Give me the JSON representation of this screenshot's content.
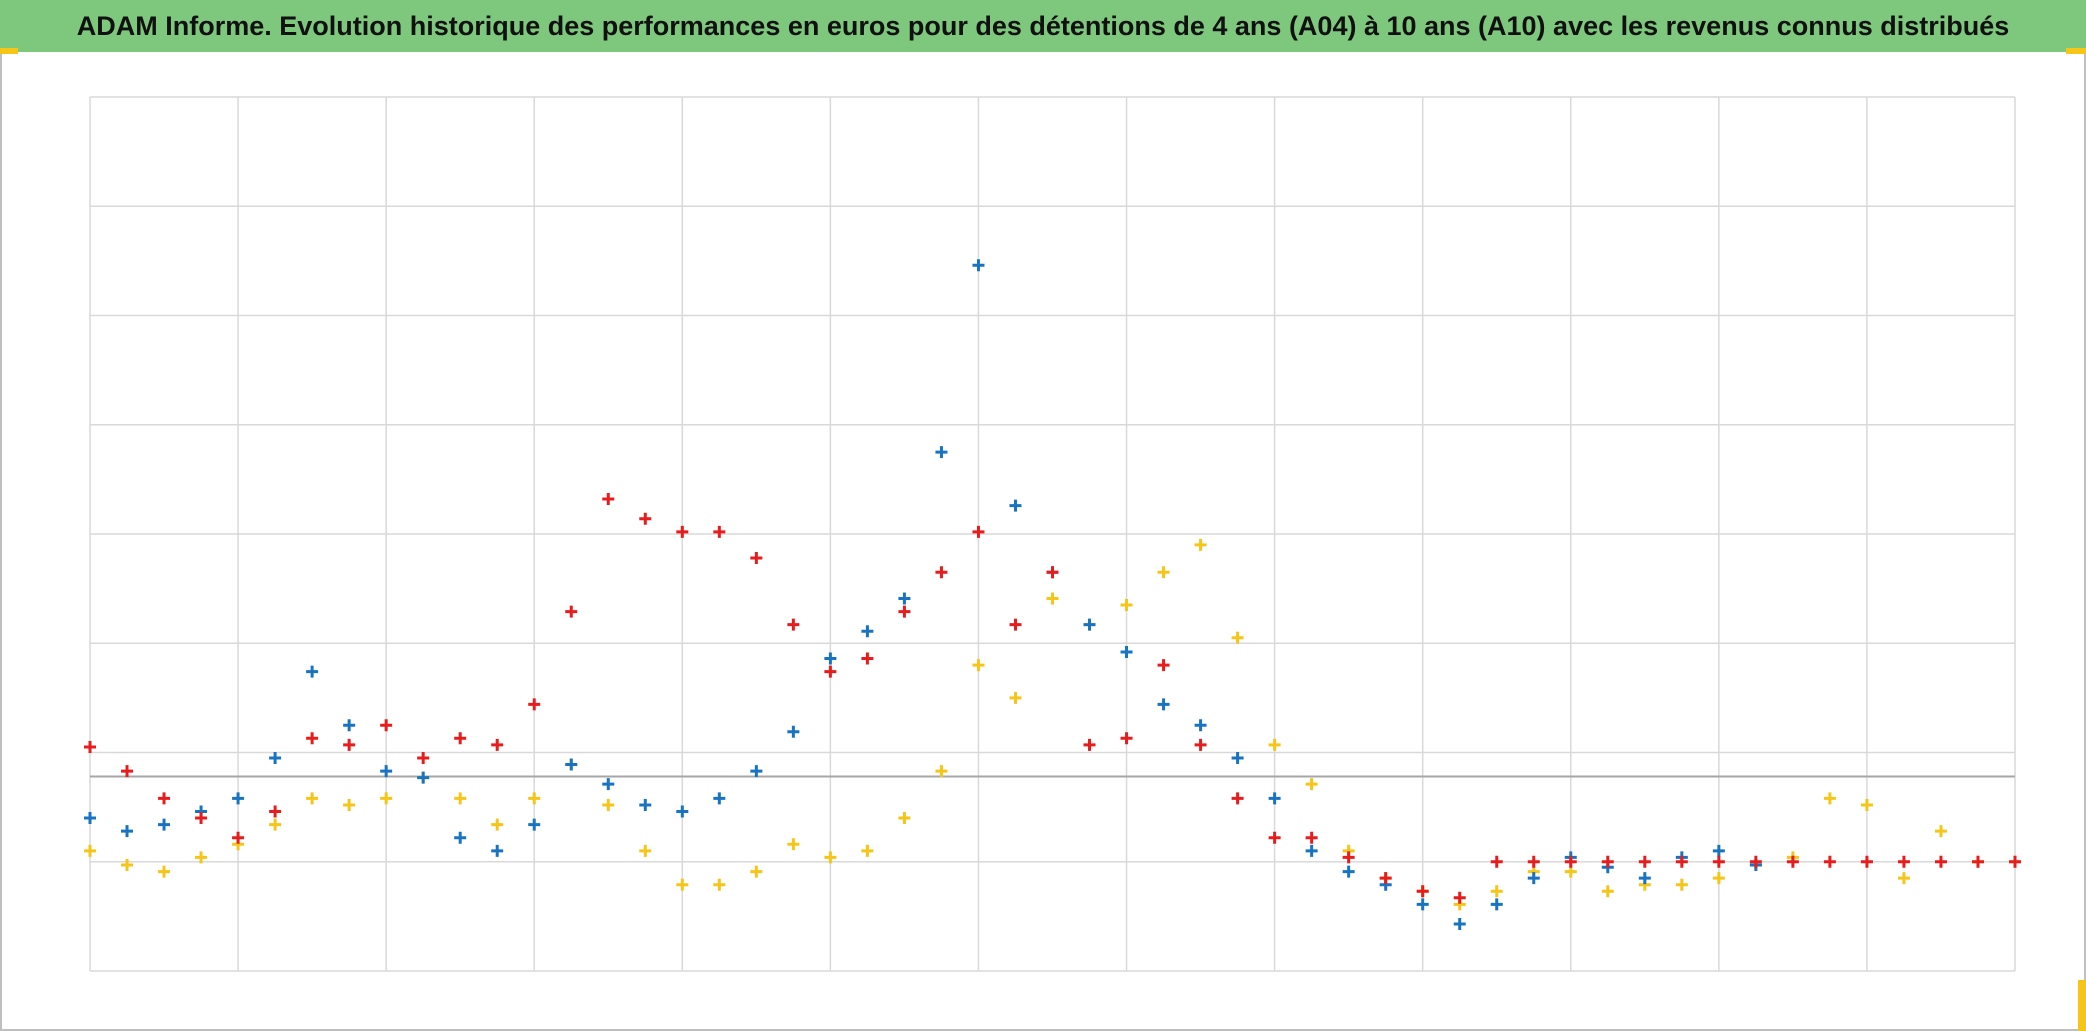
{
  "chart_data": {
    "type": "scatter",
    "title": "ADAM Informe. Evolution historique des performances en euros pour des détentions de 4 ans (A04) à 10 ans (A10) avec les revenus connus distribués",
    "title_background": "#7ec87e",
    "xlim": [
      0,
      13
    ],
    "xticks": [
      0,
      1,
      2,
      3,
      4,
      5,
      6,
      7,
      8,
      9,
      10,
      11,
      12,
      13
    ],
    "ylim": [
      0,
      8
    ],
    "yticks": [
      0,
      1,
      2,
      3,
      4,
      5,
      6,
      7,
      8
    ],
    "grid": true,
    "reference_line": 1.78,
    "series": [
      {
        "color": "#f5c518",
        "x": [
          0,
          0.25,
          0.5,
          0.75,
          1,
          1.25,
          1.5,
          1.75,
          2,
          2.25,
          2.5,
          2.75,
          3,
          3.25,
          3.5,
          3.75,
          4,
          4.25,
          4.5,
          4.75,
          5,
          5.25,
          5.5,
          5.75,
          6,
          6.25,
          6.5,
          6.75,
          7,
          7.25,
          7.5,
          7.75,
          8,
          8.25,
          8.5,
          8.75,
          9,
          9.25,
          9.5,
          9.75,
          10,
          10.25,
          10.5,
          10.75,
          11,
          11.25,
          11.5,
          11.75,
          12,
          12.25,
          12.5,
          12.75,
          13
        ],
        "values": [
          1.1,
          0.97,
          0.91,
          1.04,
          1.16,
          1.34,
          1.58,
          1.52,
          1.58,
          1.77,
          1.58,
          1.34,
          1.58,
          1.89,
          1.52,
          1.1,
          0.79,
          0.79,
          0.91,
          1.16,
          1.04,
          1.1,
          1.4,
          1.83,
          2.8,
          2.5,
          3.41,
          3.17,
          3.35,
          3.65,
          3.9,
          3.05,
          2.07,
          1.71,
          1.1,
          0.85,
          0.73,
          0.61,
          0.73,
          0.91,
          0.91,
          0.73,
          0.79,
          0.79,
          0.85,
          0.97,
          1.04,
          1.58,
          1.52,
          0.85,
          1.28,
          1.0,
          1.0
        ]
      },
      {
        "color": "#1874c1",
        "x": [
          0,
          0.25,
          0.5,
          0.75,
          1,
          1.25,
          1.5,
          1.75,
          2,
          2.25,
          2.5,
          2.75,
          3,
          3.25,
          3.5,
          3.75,
          4,
          4.25,
          4.5,
          4.75,
          5,
          5.25,
          5.5,
          5.75,
          6,
          6.25,
          6.5,
          6.75,
          7,
          7.25,
          7.5,
          7.75,
          8,
          8.25,
          8.5,
          8.75,
          9,
          9.25,
          9.5,
          9.75,
          10,
          10.25,
          10.5,
          10.75,
          11,
          11.25
        ],
        "values": [
          1.4,
          1.28,
          1.34,
          1.46,
          1.58,
          1.95,
          2.74,
          2.25,
          1.83,
          1.77,
          1.22,
          1.1,
          1.34,
          1.89,
          1.71,
          1.52,
          1.46,
          1.58,
          1.83,
          2.19,
          2.86,
          3.11,
          3.41,
          4.75,
          6.46,
          4.26,
          3.65,
          3.17,
          2.92,
          2.44,
          2.25,
          1.95,
          1.58,
          1.1,
          0.91,
          0.79,
          0.61,
          0.43,
          0.61,
          0.85,
          1.04,
          0.95,
          0.85,
          1.04,
          1.1,
          0.97
        ]
      },
      {
        "color": "#e81c1c",
        "x": [
          0,
          0.25,
          0.5,
          0.75,
          1,
          1.25,
          1.5,
          1.75,
          2,
          2.25,
          2.5,
          2.75,
          3,
          3.25,
          3.5,
          3.75,
          4,
          4.25,
          4.5,
          4.75,
          5,
          5.25,
          5.5,
          5.75,
          6,
          6.25,
          6.5,
          6.75,
          7,
          7.25,
          7.5,
          7.75,
          8,
          8.25,
          8.5,
          8.75,
          9,
          9.25,
          9.5,
          9.75,
          10,
          10.25,
          10.5,
          10.75,
          11,
          11.25,
          11.5,
          11.75,
          12,
          12.25,
          12.5,
          12.75,
          13
        ],
        "values": [
          2.05,
          1.83,
          1.58,
          1.4,
          1.22,
          1.46,
          2.13,
          2.07,
          2.25,
          1.95,
          2.13,
          2.07,
          2.44,
          3.29,
          4.32,
          4.14,
          4.02,
          4.02,
          3.78,
          3.17,
          2.74,
          2.86,
          3.29,
          3.65,
          4.02,
          3.17,
          3.65,
          2.07,
          2.13,
          2.8,
          2.07,
          1.58,
          1.22,
          1.22,
          1.04,
          0.85,
          0.73,
          0.67,
          1.0,
          1.0,
          1.0,
          1.0,
          1.0,
          1.0,
          1.0,
          1.0,
          1.0,
          1.0,
          1.0,
          1.0,
          1.0,
          1.0,
          1.0
        ]
      }
    ]
  }
}
